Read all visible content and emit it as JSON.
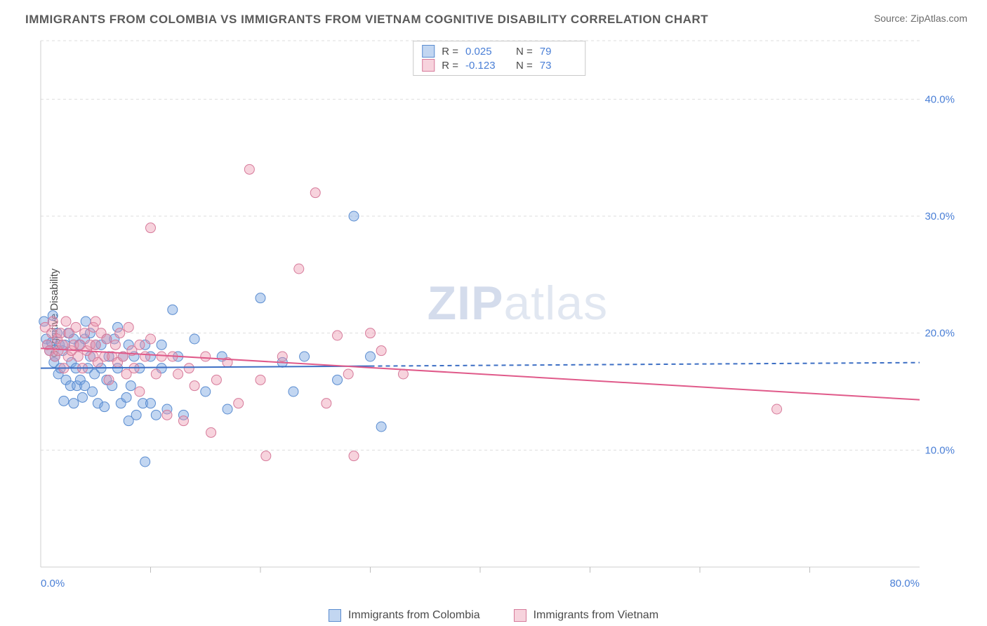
{
  "title": "IMMIGRANTS FROM COLOMBIA VS IMMIGRANTS FROM VIETNAM COGNITIVE DISABILITY CORRELATION CHART",
  "source": "Source: ZipAtlas.com",
  "ylabel": "Cognitive Disability",
  "watermark_zip": "ZIP",
  "watermark_rest": "atlas",
  "chart": {
    "type": "scatter-correlation",
    "background_color": "#ffffff",
    "grid_color": "#dddddd",
    "grid_dash": "4 4",
    "axis_color": "#cfcfcf",
    "tick_color": "#bdbdbd",
    "label_color": "#4a7fd6",
    "x": {
      "min": 0,
      "max": 80,
      "ticks_label": [
        0,
        80
      ],
      "ticks_minor": [
        10,
        20,
        30,
        40,
        50,
        60,
        70
      ],
      "unit": "%"
    },
    "y": {
      "min": 0,
      "max": 45,
      "ticks_label": [
        10,
        20,
        30,
        40
      ],
      "unit": "%"
    },
    "series": [
      {
        "name": "Immigrants from Colombia",
        "color_fill": "rgba(120,165,225,0.45)",
        "color_stroke": "#5a8cd0",
        "marker_r": 7,
        "trend": {
          "slope_solid": 0.006,
          "intercept": 17.0,
          "solid_until_x": 30,
          "dashed_after": true,
          "stroke": "#3d6fc4",
          "width": 2
        },
        "R": "0.025",
        "N": "79",
        "points": [
          [
            0.3,
            21.0
          ],
          [
            0.5,
            19.5
          ],
          [
            0.6,
            19.0
          ],
          [
            0.8,
            18.5
          ],
          [
            1.0,
            19.2
          ],
          [
            1.1,
            21.5
          ],
          [
            1.2,
            17.5
          ],
          [
            1.3,
            18.0
          ],
          [
            1.5,
            20.0
          ],
          [
            1.6,
            16.5
          ],
          [
            1.7,
            19.0
          ],
          [
            1.8,
            17.0
          ],
          [
            2.0,
            18.5
          ],
          [
            2.1,
            14.2
          ],
          [
            2.2,
            19.0
          ],
          [
            2.3,
            16.0
          ],
          [
            2.5,
            20.0
          ],
          [
            2.7,
            15.5
          ],
          [
            2.8,
            17.5
          ],
          [
            3.0,
            19.5
          ],
          [
            3.0,
            14.0
          ],
          [
            3.2,
            17.0
          ],
          [
            3.3,
            15.5
          ],
          [
            3.5,
            19.0
          ],
          [
            3.6,
            16.0
          ],
          [
            3.8,
            14.5
          ],
          [
            4.0,
            19.5
          ],
          [
            4.0,
            15.5
          ],
          [
            4.1,
            21.0
          ],
          [
            4.3,
            17.0
          ],
          [
            4.5,
            18.0
          ],
          [
            4.5,
            20.0
          ],
          [
            4.7,
            15.0
          ],
          [
            4.9,
            16.5
          ],
          [
            5.0,
            19.0
          ],
          [
            5.2,
            14.0
          ],
          [
            5.5,
            17.0
          ],
          [
            5.5,
            19.0
          ],
          [
            5.8,
            13.7
          ],
          [
            6.0,
            19.5
          ],
          [
            6.0,
            16.0
          ],
          [
            6.2,
            18.0
          ],
          [
            6.5,
            15.5
          ],
          [
            6.7,
            19.5
          ],
          [
            7.0,
            17.0
          ],
          [
            7.0,
            20.5
          ],
          [
            7.3,
            14.0
          ],
          [
            7.5,
            18.0
          ],
          [
            7.8,
            14.5
          ],
          [
            8.0,
            19.0
          ],
          [
            8.0,
            12.5
          ],
          [
            8.2,
            15.5
          ],
          [
            8.5,
            18.0
          ],
          [
            8.7,
            13.0
          ],
          [
            9.0,
            17.0
          ],
          [
            9.3,
            14.0
          ],
          [
            9.5,
            19.0
          ],
          [
            9.5,
            9.0
          ],
          [
            10.0,
            18.0
          ],
          [
            10.0,
            14.0
          ],
          [
            10.5,
            13.0
          ],
          [
            11.0,
            19.0
          ],
          [
            11.0,
            17.0
          ],
          [
            11.5,
            13.5
          ],
          [
            12.0,
            22.0
          ],
          [
            12.5,
            18.0
          ],
          [
            13.0,
            13.0
          ],
          [
            14.0,
            19.5
          ],
          [
            15.0,
            15.0
          ],
          [
            16.5,
            18.0
          ],
          [
            17.0,
            13.5
          ],
          [
            20.0,
            23.0
          ],
          [
            22.0,
            17.5
          ],
          [
            23.0,
            15.0
          ],
          [
            24.0,
            18.0
          ],
          [
            27.0,
            16.0
          ],
          [
            28.5,
            30.0
          ],
          [
            30.0,
            18.0
          ],
          [
            31.0,
            12.0
          ]
        ]
      },
      {
        "name": "Immigrants from Vietnam",
        "color_fill": "rgba(235,150,175,0.42)",
        "color_stroke": "#d67a9a",
        "marker_r": 7,
        "trend": {
          "slope_solid": -0.055,
          "intercept": 18.7,
          "solid_until_x": 80,
          "dashed_after": false,
          "stroke": "#e05a8a",
          "width": 2
        },
        "R": "-0.123",
        "N": "73",
        "points": [
          [
            0.4,
            20.5
          ],
          [
            0.6,
            19.0
          ],
          [
            0.8,
            18.5
          ],
          [
            1.0,
            20.0
          ],
          [
            1.1,
            21.0
          ],
          [
            1.3,
            18.0
          ],
          [
            1.5,
            19.5
          ],
          [
            1.6,
            18.5
          ],
          [
            1.8,
            20.0
          ],
          [
            2.0,
            19.0
          ],
          [
            2.1,
            17.0
          ],
          [
            2.3,
            21.0
          ],
          [
            2.5,
            18.0
          ],
          [
            2.6,
            20.0
          ],
          [
            2.8,
            18.5
          ],
          [
            3.0,
            19.0
          ],
          [
            3.2,
            20.5
          ],
          [
            3.4,
            18.0
          ],
          [
            3.6,
            19.0
          ],
          [
            3.8,
            17.0
          ],
          [
            4.0,
            20.0
          ],
          [
            4.2,
            18.5
          ],
          [
            4.5,
            19.0
          ],
          [
            4.8,
            18.0
          ],
          [
            4.8,
            20.5
          ],
          [
            5.0,
            19.0
          ],
          [
            5.0,
            21.0
          ],
          [
            5.2,
            17.5
          ],
          [
            5.5,
            20.0
          ],
          [
            5.8,
            18.0
          ],
          [
            6.0,
            19.5
          ],
          [
            6.2,
            16.0
          ],
          [
            6.5,
            18.0
          ],
          [
            6.8,
            19.0
          ],
          [
            7.0,
            17.5
          ],
          [
            7.2,
            20.0
          ],
          [
            7.5,
            18.0
          ],
          [
            7.8,
            16.5
          ],
          [
            8.0,
            20.5
          ],
          [
            8.3,
            18.5
          ],
          [
            8.5,
            17.0
          ],
          [
            9.0,
            19.0
          ],
          [
            9.0,
            15.0
          ],
          [
            9.5,
            18.0
          ],
          [
            10.0,
            19.5
          ],
          [
            10.0,
            29.0
          ],
          [
            10.5,
            16.5
          ],
          [
            11.0,
            18.0
          ],
          [
            11.5,
            13.0
          ],
          [
            12.0,
            18.0
          ],
          [
            12.5,
            16.5
          ],
          [
            13.0,
            12.5
          ],
          [
            13.5,
            17.0
          ],
          [
            14.0,
            15.5
          ],
          [
            15.0,
            18.0
          ],
          [
            15.5,
            11.5
          ],
          [
            16.0,
            16.0
          ],
          [
            17.0,
            17.5
          ],
          [
            18.0,
            14.0
          ],
          [
            19.0,
            34.0
          ],
          [
            20.0,
            16.0
          ],
          [
            20.5,
            9.5
          ],
          [
            22.0,
            18.0
          ],
          [
            23.5,
            25.5
          ],
          [
            25.0,
            32.0
          ],
          [
            26.0,
            14.0
          ],
          [
            27.0,
            19.8
          ],
          [
            28.0,
            16.5
          ],
          [
            28.5,
            9.5
          ],
          [
            30.0,
            20.0
          ],
          [
            31.0,
            18.5
          ],
          [
            33.0,
            16.5
          ],
          [
            67.0,
            13.5
          ]
        ]
      }
    ]
  },
  "stats_box": {
    "rows": [
      {
        "swatch_fill": "rgba(120,165,225,0.45)",
        "swatch_stroke": "#5a8cd0",
        "R": "0.025",
        "N": "79"
      },
      {
        "swatch_fill": "rgba(235,150,175,0.42)",
        "swatch_stroke": "#d67a9a",
        "R": "-0.123",
        "N": "73"
      }
    ],
    "R_prefix": "R = ",
    "N_prefix": "N = "
  },
  "legend_bottom": [
    {
      "swatch_fill": "rgba(120,165,225,0.45)",
      "swatch_stroke": "#5a8cd0",
      "label": "Immigrants from Colombia"
    },
    {
      "swatch_fill": "rgba(235,150,175,0.42)",
      "swatch_stroke": "#d67a9a",
      "label": "Immigrants from Vietnam"
    }
  ]
}
